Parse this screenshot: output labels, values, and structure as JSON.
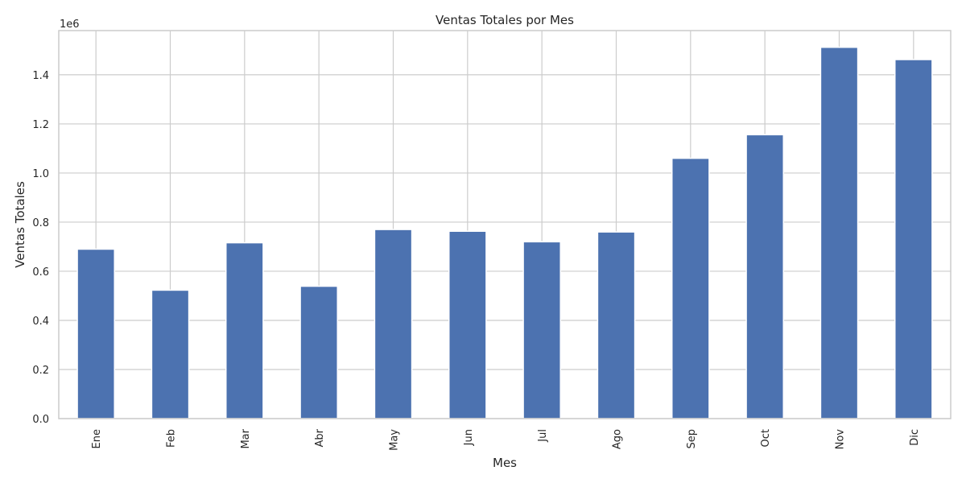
{
  "chart_data": {
    "type": "bar",
    "title": "Ventas Totales por Mes",
    "xlabel": "Mes",
    "ylabel": "Ventas Totales",
    "y_offset_label": "1e6",
    "categories": [
      "Ene",
      "Feb",
      "Mar",
      "Abr",
      "May",
      "Jun",
      "Jul",
      "Ago",
      "Sep",
      "Oct",
      "Nov",
      "Dic"
    ],
    "values": [
      690000,
      523000,
      716000,
      539000,
      770000,
      763000,
      720000,
      760000,
      1060000,
      1156000,
      1512000,
      1462000
    ],
    "ylim": [
      0,
      1580000
    ],
    "yticks": [
      0,
      200000,
      400000,
      600000,
      800000,
      1000000,
      1200000,
      1400000
    ],
    "ytick_labels": [
      "0.0",
      "0.2",
      "0.4",
      "0.6",
      "0.8",
      "1.0",
      "1.2",
      "1.4"
    ],
    "grid": true,
    "legend": "none",
    "bar_color": "#4c72b0",
    "grid_color": "#cccccc",
    "background": "#ffffff"
  }
}
